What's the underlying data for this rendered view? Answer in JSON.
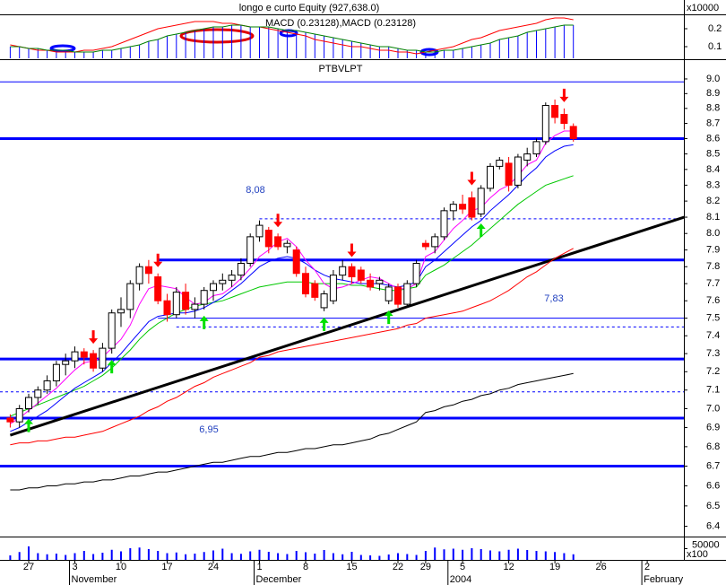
{
  "chart_data": {
    "type": "candlestick",
    "title": "PTBVLPT",
    "log_scale": true,
    "categories": [
      null,
      null,
      "27",
      null,
      null,
      null,
      null,
      "3",
      null,
      null,
      null,
      null,
      "10",
      null,
      null,
      null,
      null,
      "17",
      null,
      null,
      null,
      null,
      "24",
      null,
      null,
      null,
      null,
      "1",
      null,
      null,
      null,
      null,
      "8",
      null,
      null,
      null,
      null,
      "15",
      null,
      null,
      null,
      null,
      "22",
      null,
      null,
      "29",
      null,
      null,
      null,
      "5",
      null,
      null,
      null,
      null,
      "12",
      null,
      null,
      null,
      null,
      "19",
      null,
      null,
      null,
      null,
      "26",
      null,
      null,
      null,
      null,
      "2",
      null,
      null,
      null,
      null
    ],
    "month_labels": [
      "November",
      "December",
      "2004",
      "February"
    ],
    "up_color": "#ffffff",
    "down_color": "#ff0000",
    "open": [
      6.95,
      6.93,
      7.0,
      7.06,
      7.1,
      7.15,
      7.24,
      7.26,
      7.31,
      7.3,
      7.22,
      7.33,
      7.53,
      7.55,
      7.7,
      7.8,
      7.74,
      7.6,
      7.52,
      7.65,
      7.55,
      7.58,
      7.66,
      7.7,
      7.72,
      7.75,
      7.82,
      7.98,
      8.02,
      7.98,
      7.92,
      7.9,
      7.76,
      7.7,
      7.56,
      7.6,
      7.75,
      7.8,
      7.78,
      7.72,
      7.7,
      7.6,
      7.68,
      7.58,
      7.7,
      7.94,
      7.92,
      7.98,
      8.14,
      8.18,
      8.22,
      8.12,
      8.28,
      8.42,
      8.44,
      8.3,
      8.46,
      8.5,
      8.58,
      8.82,
      8.76,
      8.68,
      null,
      null,
      null,
      null,
      null,
      null,
      null,
      null,
      null,
      null,
      null,
      null
    ],
    "high": [
      6.97,
      7.02,
      7.08,
      7.12,
      7.18,
      7.26,
      7.3,
      7.34,
      7.33,
      7.32,
      7.36,
      7.55,
      7.62,
      7.72,
      7.82,
      7.84,
      7.76,
      7.64,
      7.68,
      7.7,
      7.62,
      7.68,
      7.72,
      7.76,
      7.78,
      7.85,
      8.0,
      8.08,
      8.04,
      8.0,
      7.96,
      7.92,
      7.8,
      7.72,
      7.66,
      7.78,
      7.84,
      7.82,
      7.8,
      7.76,
      7.74,
      7.7,
      7.7,
      7.72,
      7.84,
      7.96,
      8.0,
      8.16,
      8.2,
      8.24,
      8.26,
      8.3,
      8.44,
      8.48,
      8.48,
      8.5,
      8.54,
      8.6,
      8.84,
      8.86,
      8.8,
      8.7,
      null,
      null,
      null,
      null,
      null,
      null,
      null,
      null,
      null,
      null,
      null,
      null
    ],
    "low": [
      6.9,
      6.9,
      6.98,
      7.02,
      7.08,
      7.12,
      7.18,
      7.22,
      7.24,
      7.2,
      7.2,
      7.3,
      7.45,
      7.5,
      7.66,
      7.7,
      7.58,
      7.48,
      7.5,
      7.52,
      7.5,
      7.55,
      7.6,
      7.66,
      7.68,
      7.72,
      7.8,
      7.95,
      7.88,
      7.9,
      7.88,
      7.74,
      7.62,
      7.6,
      7.54,
      7.58,
      7.72,
      7.7,
      7.7,
      7.66,
      7.66,
      7.58,
      7.56,
      7.56,
      7.68,
      7.9,
      7.88,
      7.96,
      8.08,
      8.12,
      8.08,
      8.1,
      8.26,
      8.4,
      8.26,
      8.28,
      8.42,
      8.48,
      8.56,
      8.7,
      8.66,
      8.58,
      null,
      null,
      null,
      null,
      null,
      null,
      null,
      null,
      null,
      null,
      null,
      null
    ],
    "close": [
      6.93,
      7.0,
      7.06,
      7.1,
      7.15,
      7.24,
      7.26,
      7.31,
      7.28,
      7.22,
      7.33,
      7.53,
      7.55,
      7.7,
      7.8,
      7.76,
      7.6,
      7.52,
      7.65,
      7.55,
      7.58,
      7.66,
      7.7,
      7.72,
      7.75,
      7.82,
      7.98,
      8.05,
      7.92,
      7.92,
      7.94,
      7.76,
      7.64,
      7.62,
      7.64,
      7.75,
      7.8,
      7.74,
      7.72,
      7.68,
      7.72,
      7.68,
      7.58,
      7.7,
      7.82,
      7.92,
      7.98,
      8.14,
      8.18,
      8.15,
      8.1,
      8.28,
      8.42,
      8.46,
      8.3,
      8.48,
      8.5,
      8.58,
      8.82,
      8.74,
      8.7,
      8.6,
      null,
      null,
      null,
      null,
      null,
      null,
      null,
      null,
      null,
      null,
      null,
      null
    ],
    "series": [
      {
        "color": "#000000",
        "values": [
          6.58,
          6.58,
          6.59,
          6.59,
          6.6,
          6.6,
          6.61,
          6.61,
          6.62,
          6.62,
          6.63,
          6.63,
          6.64,
          6.65,
          6.65,
          6.66,
          6.67,
          6.67,
          6.68,
          6.69,
          6.7,
          6.71,
          6.72,
          6.72,
          6.73,
          6.74,
          6.75,
          6.75,
          6.76,
          6.77,
          6.77,
          6.78,
          6.79,
          6.79,
          6.8,
          6.81,
          6.81,
          6.82,
          6.83,
          6.84,
          6.86,
          6.87,
          6.89,
          6.91,
          6.93,
          6.98,
          6.99,
          7.01,
          7.02,
          7.04,
          7.05,
          7.07,
          7.08,
          7.1,
          7.11,
          7.13,
          7.14,
          7.15,
          7.16,
          7.17,
          7.18,
          7.19,
          null,
          null,
          null,
          null,
          null,
          null,
          null,
          null,
          null,
          null,
          null,
          null
        ]
      },
      {
        "color": "#ff0000",
        "values": [
          6.81,
          6.82,
          6.82,
          6.83,
          6.83,
          6.84,
          6.85,
          6.85,
          6.86,
          6.87,
          6.88,
          6.9,
          6.92,
          6.94,
          6.96,
          6.99,
          7.01,
          7.04,
          7.06,
          7.09,
          7.12,
          7.14,
          7.17,
          7.19,
          7.21,
          7.23,
          7.25,
          7.28,
          7.29,
          7.31,
          7.32,
          7.33,
          7.34,
          7.35,
          7.36,
          7.37,
          7.38,
          7.39,
          7.4,
          7.41,
          7.42,
          7.43,
          7.44,
          7.46,
          7.47,
          7.5,
          7.51,
          7.52,
          7.53,
          7.54,
          7.56,
          7.58,
          7.6,
          7.63,
          7.66,
          7.7,
          7.74,
          7.77,
          7.81,
          7.85,
          7.88,
          7.91,
          null,
          null,
          null,
          null,
          null,
          null,
          null,
          null,
          null,
          null,
          null,
          null
        ]
      },
      {
        "color": "#00c800",
        "values": [
          6.96,
          6.98,
          7.0,
          7.02,
          7.04,
          7.06,
          7.08,
          7.1,
          7.12,
          7.15,
          7.18,
          7.22,
          7.27,
          7.32,
          7.38,
          7.43,
          7.47,
          7.5,
          7.53,
          7.55,
          7.57,
          7.58,
          7.59,
          7.6,
          7.62,
          7.64,
          7.66,
          7.68,
          7.69,
          7.7,
          7.71,
          7.71,
          7.71,
          7.7,
          7.7,
          7.7,
          7.7,
          7.69,
          7.69,
          7.68,
          7.67,
          7.66,
          7.66,
          7.67,
          7.68,
          7.75,
          7.78,
          7.81,
          7.85,
          7.89,
          7.93,
          7.98,
          8.03,
          8.08,
          8.13,
          8.18,
          8.22,
          8.26,
          8.3,
          8.32,
          8.34,
          8.36,
          null,
          null,
          null,
          null,
          null,
          null,
          null,
          null,
          null,
          null,
          null,
          null
        ]
      },
      {
        "color": "#0000ff",
        "values": [
          6.88,
          6.9,
          6.93,
          6.96,
          6.99,
          7.03,
          7.07,
          7.11,
          7.14,
          7.17,
          7.2,
          7.25,
          7.3,
          7.36,
          7.42,
          7.48,
          7.51,
          7.52,
          7.53,
          7.53,
          7.54,
          7.56,
          7.59,
          7.62,
          7.66,
          7.7,
          7.75,
          7.8,
          7.83,
          7.85,
          7.86,
          7.85,
          7.82,
          7.78,
          7.75,
          7.73,
          7.72,
          7.71,
          7.7,
          7.7,
          7.7,
          7.69,
          7.68,
          7.69,
          7.71,
          7.8,
          7.84,
          7.89,
          7.94,
          7.99,
          8.04,
          8.08,
          8.14,
          8.19,
          8.24,
          8.3,
          8.36,
          8.41,
          8.48,
          8.52,
          8.55,
          8.56,
          null,
          null,
          null,
          null,
          null,
          null,
          null,
          null,
          null,
          null,
          null,
          null
        ]
      },
      {
        "color": "#ff00ff",
        "values": [
          6.92,
          6.95,
          6.99,
          7.03,
          7.07,
          7.11,
          7.16,
          7.21,
          7.25,
          7.26,
          7.28,
          7.33,
          7.38,
          7.46,
          7.58,
          7.67,
          7.69,
          7.68,
          7.67,
          7.62,
          7.58,
          7.59,
          7.63,
          7.64,
          7.68,
          7.73,
          7.79,
          7.86,
          7.9,
          7.95,
          7.97,
          7.92,
          7.84,
          7.78,
          7.7,
          7.67,
          7.68,
          7.7,
          7.72,
          7.74,
          7.73,
          7.7,
          7.67,
          7.67,
          7.7,
          7.86,
          7.89,
          7.96,
          8.03,
          8.08,
          8.14,
          8.16,
          8.22,
          8.27,
          8.3,
          8.36,
          8.43,
          8.46,
          8.57,
          8.62,
          8.65,
          8.65,
          null,
          null,
          null,
          null,
          null,
          null,
          null,
          null,
          null,
          null,
          null,
          null
        ]
      }
    ],
    "hline_color": "#0000ff",
    "hlines": [
      {
        "value": 8.98,
        "width": 1,
        "from": 0
      },
      {
        "value": 8.6,
        "width": 3,
        "from": 0
      },
      {
        "value": 8.09,
        "width": 1,
        "dash": true,
        "from": 27
      },
      {
        "value": 7.84,
        "width": 3,
        "from": 16
      },
      {
        "value": 7.5,
        "width": 1,
        "from": 16
      },
      {
        "value": 7.45,
        "width": 1,
        "dash": true,
        "from": 18
      },
      {
        "value": 7.27,
        "width": 3,
        "from": 0
      },
      {
        "value": 7.09,
        "width": 1,
        "dash": true,
        "from": 0
      },
      {
        "value": 6.95,
        "width": 3,
        "from": 0
      },
      {
        "value": 6.7,
        "width": 3,
        "from": 0
      }
    ],
    "trendline": {
      "color": "#000000",
      "from": 0,
      "to": 73,
      "values": [
        6.86,
        8.1
      ]
    },
    "signals": {
      "sell": [
        9,
        16,
        29,
        37,
        50,
        60
      ],
      "buy": [
        2,
        11,
        21,
        34,
        41,
        51
      ]
    },
    "annotations": [
      "8,08",
      "6,95",
      "7,83"
    ],
    "ylim": [
      6.35,
      9.13
    ],
    "yticks": [
      6.4,
      6.5,
      6.6,
      6.7,
      6.8,
      6.9,
      {
        "value": 7,
        "label": "7.0"
      },
      7.1,
      7.2,
      7.3,
      7.4,
      7.5,
      7.6,
      7.7,
      7.8,
      7.9,
      {
        "value": 8,
        "label": "8.0"
      },
      8.1,
      8.2,
      8.3,
      8.4,
      8.5,
      8.6,
      8.7,
      8.8,
      8.9,
      {
        "value": 9,
        "label": "9.0"
      }
    ],
    "macd": {
      "label": "MACD (0.23128),MACD (0.23128)",
      "ylim": [
        0.03,
        0.275
      ],
      "yticks": [
        0.1,
        0.2
      ],
      "bar_color": "#0000ff",
      "line": {
        "color": "#ff0000",
        "values": [
          0.11,
          0.1,
          0.09,
          0.08,
          0.08,
          0.07,
          0.07,
          0.07,
          0.08,
          0.08,
          0.09,
          0.1,
          0.12,
          0.14,
          0.16,
          0.18,
          0.2,
          0.21,
          0.22,
          0.23,
          0.24,
          0.24,
          0.24,
          0.23,
          0.23,
          0.22,
          0.21,
          0.21,
          0.2,
          0.19,
          0.18,
          0.17,
          0.16,
          0.14,
          0.13,
          0.12,
          0.11,
          0.1,
          0.1,
          0.09,
          0.08,
          0.08,
          0.07,
          0.07,
          0.06,
          0.07,
          0.08,
          0.09,
          0.1,
          0.12,
          0.14,
          0.15,
          0.17,
          0.19,
          0.2,
          0.21,
          0.22,
          0.23,
          0.25,
          0.26,
          0.26,
          0.25,
          null,
          null,
          null,
          null,
          null,
          null,
          null,
          null,
          null,
          null,
          null,
          null
        ]
      },
      "signal": {
        "color": "#008000",
        "values": [
          0.1,
          0.1,
          0.09,
          0.09,
          0.08,
          0.08,
          0.08,
          0.07,
          0.07,
          0.07,
          0.08,
          0.08,
          0.09,
          0.1,
          0.11,
          0.13,
          0.14,
          0.16,
          0.17,
          0.18,
          0.19,
          0.2,
          0.21,
          0.21,
          0.22,
          0.22,
          0.21,
          0.21,
          0.21,
          0.2,
          0.19,
          0.19,
          0.18,
          0.17,
          0.16,
          0.15,
          0.14,
          0.13,
          0.12,
          0.11,
          0.1,
          0.1,
          0.09,
          0.08,
          0.08,
          0.07,
          0.07,
          0.08,
          0.08,
          0.09,
          0.1,
          0.11,
          0.12,
          0.14,
          0.15,
          0.16,
          0.18,
          0.19,
          0.2,
          0.21,
          0.22,
          0.22,
          null,
          null,
          null,
          null,
          null,
          null,
          null,
          null,
          null,
          null,
          null,
          null
        ]
      }
    },
    "volume": {
      "ylim": [
        0,
        100000
      ],
      "yticks": [
        50000
      ],
      "multiplier_label": "x100",
      "color": "#0000ff",
      "values": [
        20000,
        35000,
        60000,
        30000,
        25000,
        28000,
        22000,
        30000,
        40000,
        26000,
        32000,
        45000,
        38000,
        52000,
        55000,
        48000,
        40000,
        30000,
        33000,
        25000,
        28000,
        35000,
        42000,
        50000,
        30000,
        27000,
        38000,
        45000,
        36000,
        30000,
        26000,
        40000,
        34000,
        28000,
        44000,
        30000,
        25000,
        36000,
        22000,
        20000,
        18000,
        24000,
        30000,
        26000,
        22000,
        40000,
        55000,
        47000,
        50000,
        45000,
        52000,
        48000,
        42000,
        38000,
        45000,
        50000,
        44000,
        40000,
        38000,
        35000,
        30000,
        25000,
        null,
        null,
        null,
        null,
        null,
        null,
        null,
        null,
        null,
        null,
        null,
        null
      ]
    },
    "equity": {
      "label": "longo e curto Equity (927,638.0)",
      "multiplier_label": "x10000"
    }
  }
}
